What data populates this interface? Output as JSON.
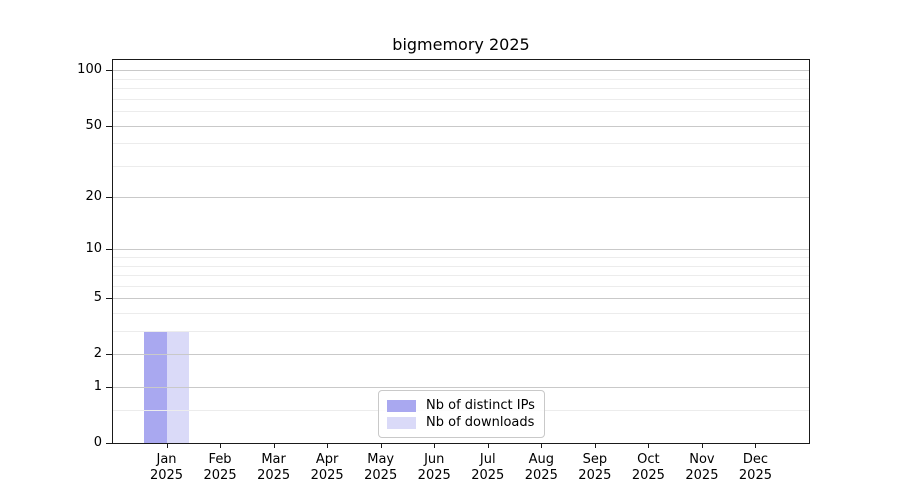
{
  "chart_data": {
    "type": "bar",
    "title": "bigmemory 2025",
    "x_categories": [
      "Jan",
      "Feb",
      "Mar",
      "Apr",
      "May",
      "Jun",
      "Jul",
      "Aug",
      "Sep",
      "Oct",
      "Nov",
      "Dec"
    ],
    "x_year_label": "2025",
    "series": [
      {
        "name": "Nb of distinct IPs",
        "color": "#a9a8f0",
        "values": [
          3,
          0,
          0,
          0,
          0,
          0,
          0,
          0,
          0,
          0,
          0,
          0
        ]
      },
      {
        "name": "Nb of downloads",
        "color": "#dadaf8",
        "values": [
          3,
          0,
          0,
          0,
          0,
          0,
          0,
          0,
          0,
          0,
          0,
          0
        ]
      }
    ],
    "y_scale": "log1p",
    "y_major_ticks": [
      0,
      1,
      2,
      5,
      10,
      20,
      50,
      100
    ],
    "y_minor_gridlines": [
      0.5,
      3,
      4,
      6,
      7,
      8,
      9,
      30,
      40,
      60,
      70,
      80,
      90
    ],
    "ylim": [
      0,
      114
    ],
    "grid": "on",
    "legend_position": "lower center"
  }
}
